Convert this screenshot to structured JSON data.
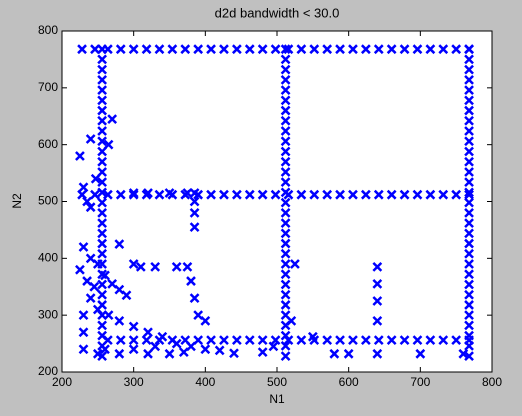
{
  "chart_data": {
    "type": "scatter",
    "title": "d2d bandwidth < 30.0",
    "x_label": "N1",
    "y_label": "N2",
    "color": "#0000ff",
    "xlim": [
      200,
      800
    ],
    "ylim": [
      200,
      800
    ],
    "xticks": [
      200,
      300,
      400,
      500,
      600,
      700,
      800
    ],
    "yticks": [
      200,
      300,
      400,
      500,
      600,
      700,
      800
    ],
    "x": [
      228,
      246,
      264,
      282,
      300,
      318,
      336,
      354,
      372,
      390,
      408,
      426,
      444,
      462,
      480,
      498,
      516,
      534,
      552,
      570,
      588,
      606,
      624,
      642,
      660,
      678,
      696,
      714,
      732,
      750,
      768,
      228,
      246,
      264,
      282,
      300,
      318,
      336,
      354,
      372,
      390,
      408,
      426,
      444,
      462,
      480,
      498,
      516,
      534,
      552,
      570,
      588,
      606,
      624,
      642,
      660,
      678,
      696,
      714,
      732,
      750,
      768,
      264,
      282,
      300,
      318,
      336,
      354,
      372,
      390,
      408,
      426,
      444,
      462,
      480,
      498,
      516,
      534,
      552,
      570,
      588,
      606,
      624,
      642,
      660,
      678,
      696,
      714,
      732,
      750,
      768,
      256,
      256,
      256,
      256,
      256,
      256,
      256,
      256,
      256,
      256,
      256,
      256,
      256,
      256,
      256,
      256,
      256,
      256,
      256,
      256,
      256,
      256,
      256,
      256,
      256,
      256,
      256,
      256,
      256,
      256,
      256,
      512,
      512,
      512,
      512,
      512,
      512,
      512,
      512,
      512,
      512,
      512,
      512,
      512,
      512,
      512,
      512,
      512,
      512,
      512,
      512,
      512,
      512,
      512,
      512,
      512,
      512,
      512,
      512,
      512,
      512,
      512,
      768,
      768,
      768,
      768,
      768,
      768,
      768,
      768,
      768,
      768,
      768,
      768,
      768,
      768,
      768,
      768,
      768,
      768,
      768,
      768,
      768,
      768,
      768,
      768,
      768,
      768,
      768,
      768,
      768,
      768,
      768,
      225,
      240,
      247,
      270,
      265,
      230,
      235,
      240,
      300,
      320,
      350,
      375,
      385,
      385,
      385,
      385,
      280,
      230,
      240,
      250,
      225,
      235,
      245,
      260,
      270,
      280,
      290,
      300,
      310,
      330,
      360,
      375,
      380,
      385,
      390,
      400,
      240,
      250,
      265,
      280,
      300,
      320,
      340,
      360,
      380,
      400,
      420,
      440,
      230,
      230,
      230,
      250,
      280,
      320,
      350,
      480,
      495,
      520,
      525,
      550,
      580,
      600,
      640,
      640,
      640,
      640,
      640,
      760,
      700,
      260,
      300,
      330,
      370
    ],
    "y": [
      768,
      768,
      768,
      768,
      768,
      768,
      768,
      768,
      768,
      768,
      768,
      768,
      768,
      768,
      768,
      768,
      768,
      768,
      768,
      768,
      768,
      768,
      768,
      768,
      768,
      768,
      768,
      768,
      768,
      768,
      768,
      512,
      512,
      512,
      512,
      512,
      512,
      512,
      512,
      512,
      512,
      512,
      512,
      512,
      512,
      512,
      512,
      512,
      512,
      512,
      512,
      512,
      512,
      512,
      512,
      512,
      512,
      512,
      512,
      512,
      512,
      512,
      256,
      256,
      256,
      256,
      256,
      256,
      256,
      256,
      256,
      256,
      256,
      256,
      256,
      256,
      256,
      256,
      256,
      256,
      256,
      256,
      256,
      256,
      256,
      256,
      256,
      256,
      256,
      256,
      256,
      228,
      246,
      264,
      282,
      300,
      318,
      336,
      354,
      372,
      390,
      408,
      426,
      444,
      462,
      480,
      498,
      516,
      534,
      552,
      570,
      588,
      606,
      624,
      642,
      660,
      678,
      696,
      714,
      732,
      750,
      768,
      228,
      246,
      264,
      282,
      300,
      318,
      336,
      354,
      372,
      390,
      408,
      426,
      444,
      462,
      480,
      498,
      516,
      534,
      552,
      570,
      588,
      606,
      624,
      642,
      660,
      678,
      696,
      714,
      732,
      750,
      768,
      228,
      246,
      264,
      282,
      300,
      318,
      336,
      354,
      372,
      390,
      408,
      426,
      444,
      462,
      480,
      498,
      516,
      534,
      552,
      570,
      588,
      606,
      624,
      642,
      660,
      678,
      696,
      714,
      732,
      750,
      768,
      580,
      610,
      540,
      645,
      600,
      525,
      500,
      490,
      515,
      515,
      515,
      515,
      515,
      500,
      480,
      455,
      425,
      420,
      400,
      390,
      380,
      360,
      350,
      370,
      355,
      345,
      335,
      390,
      385,
      385,
      385,
      385,
      360,
      330,
      300,
      290,
      330,
      310,
      300,
      290,
      280,
      270,
      262,
      250,
      245,
      240,
      238,
      233,
      300,
      270,
      240,
      232,
      232,
      232,
      232,
      235,
      245,
      290,
      390,
      262,
      232,
      232,
      385,
      355,
      325,
      290,
      232,
      232,
      232,
      240,
      240,
      245,
      235
    ]
  }
}
